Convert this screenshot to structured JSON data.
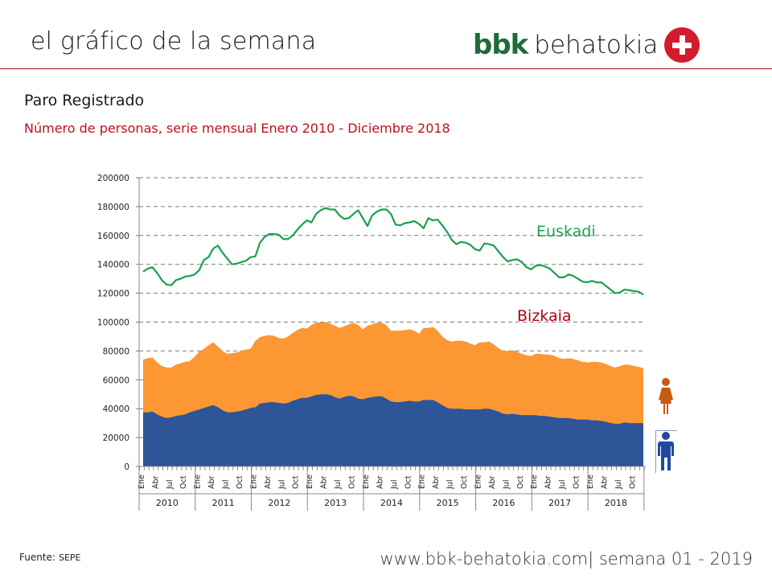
{
  "header": {
    "title": "el gráfico de la semana",
    "logo_bbk": "bbk",
    "logo_behatokia": "behatokia"
  },
  "subtitle": "Paro Registrado",
  "description": "Número de personas, serie mensual Enero 2010 - Diciembre 2018",
  "source": {
    "label": "Fuente:",
    "value": "SEPE"
  },
  "footer": "www.bbk-behatokia.com| semana 01 - 2019",
  "colors": {
    "euskadi": "#1aa050",
    "total_bizkaia": "#fd9734",
    "male": "#2e5597",
    "grid": "#7a7a7a",
    "accent": "#c0101c"
  },
  "chart_data": {
    "type": "area",
    "title": "Paro Registrado",
    "xlabel": "",
    "ylabel": "",
    "ylim": [
      0,
      200000
    ],
    "yticks": [
      "0",
      "20000",
      "40000",
      "60000",
      "80000",
      "100000",
      "120000",
      "140000",
      "160000",
      "180000",
      "200000"
    ],
    "ytick_values": [
      0,
      20000,
      40000,
      60000,
      80000,
      100000,
      120000,
      140000,
      160000,
      180000,
      200000
    ],
    "grid": true,
    "month_labels": [
      "Ene",
      "Abr",
      "Jul",
      "Oct"
    ],
    "years": [
      "2010",
      "2011",
      "2012",
      "2013",
      "2014",
      "2015",
      "2016",
      "2017",
      "2018"
    ],
    "series": [
      {
        "name": "Euskadi",
        "type": "line",
        "values": [
          135000,
          137000,
          138000,
          134000,
          129000,
          126000,
          125500,
          129000,
          130000,
          131500,
          132000,
          133000,
          136000,
          143000,
          145000,
          151000,
          153000,
          148000,
          144000,
          140000,
          140500,
          141500,
          142500,
          145000,
          145500,
          155000,
          159000,
          161000,
          161000,
          160500,
          157500,
          157500,
          160000,
          164000,
          167500,
          170500,
          169000,
          175000,
          177500,
          179000,
          178000,
          178000,
          174000,
          171500,
          172000,
          175000,
          177500,
          172000,
          166500,
          174000,
          176500,
          178000,
          178000,
          175000,
          167500,
          167000,
          168500,
          169000,
          170000,
          168000,
          165000,
          172000,
          170500,
          171000,
          167000,
          162500,
          157000,
          154000,
          155500,
          155000,
          153500,
          150500,
          149500,
          154500,
          154000,
          153000,
          149000,
          145000,
          142000,
          143000,
          143500,
          141500,
          138000,
          136500,
          139000,
          139500,
          138500,
          137000,
          134000,
          131000,
          131000,
          133000,
          132000,
          130000,
          128000,
          127500,
          128500,
          127500,
          127500,
          125000,
          122500,
          120000,
          120500,
          122500,
          122000,
          121500,
          121000,
          119000
        ]
      },
      {
        "name": "Bizkaia",
        "type": "area",
        "values": [
          74000,
          75000,
          75500,
          72000,
          69500,
          68500,
          68500,
          70500,
          71500,
          72500,
          73000,
          76000,
          79500,
          81500,
          84000,
          86000,
          83000,
          80000,
          78000,
          78500,
          79000,
          80000,
          81000,
          81500,
          87000,
          89500,
          90500,
          91000,
          90500,
          89000,
          88500,
          90000,
          92500,
          94500,
          96000,
          95500,
          98000,
          99500,
          100000,
          100000,
          99000,
          97500,
          96000,
          97000,
          98500,
          99500,
          98000,
          95000,
          97500,
          98500,
          99500,
          99500,
          98000,
          94000,
          94000,
          94000,
          94500,
          95000,
          94000,
          92000,
          96000,
          96000,
          96500,
          94000,
          90000,
          87500,
          86500,
          87000,
          87000,
          86500,
          85000,
          84000,
          86000,
          86000,
          86500,
          84500,
          82000,
          80000,
          80000,
          80500,
          79500,
          78000,
          77000,
          76500,
          78000,
          78000,
          77500,
          77500,
          76500,
          75000,
          74500,
          75000,
          74500,
          73500,
          72500,
          72000,
          72500,
          72500,
          72000,
          71000,
          69500,
          68500,
          69500,
          70500,
          70500,
          69500,
          69000,
          68000
        ]
      },
      {
        "name": "Bizkaia (hombres)",
        "type": "area",
        "values": [
          37500,
          37500,
          38000,
          36000,
          34500,
          33500,
          34000,
          35000,
          35500,
          36000,
          37500,
          38500,
          39500,
          40500,
          41500,
          42500,
          41000,
          39000,
          37500,
          37500,
          38000,
          38500,
          39500,
          40500,
          41000,
          43500,
          44000,
          44500,
          44500,
          44000,
          43500,
          44000,
          45500,
          46500,
          47500,
          47500,
          48500,
          49500,
          50000,
          50000,
          49500,
          48000,
          47000,
          48000,
          49000,
          48500,
          47000,
          46500,
          47500,
          48000,
          48500,
          48500,
          47000,
          45000,
          44500,
          44500,
          45000,
          45500,
          45000,
          45000,
          46000,
          46000,
          46000,
          44500,
          42500,
          40500,
          40000,
          40000,
          40000,
          39500,
          39500,
          39500,
          39500,
          40000,
          40000,
          39000,
          38000,
          36500,
          36000,
          36500,
          36000,
          35500,
          35500,
          35500,
          35500,
          35000,
          35000,
          34500,
          34000,
          33500,
          33500,
          33500,
          33000,
          32500,
          32500,
          32500,
          32000,
          32000,
          31500,
          31000,
          30000,
          29500,
          29500,
          30500,
          30000,
          30000,
          30000,
          30000
        ]
      }
    ],
    "annotations": [
      "Euskadi",
      "Bizkaia"
    ]
  }
}
